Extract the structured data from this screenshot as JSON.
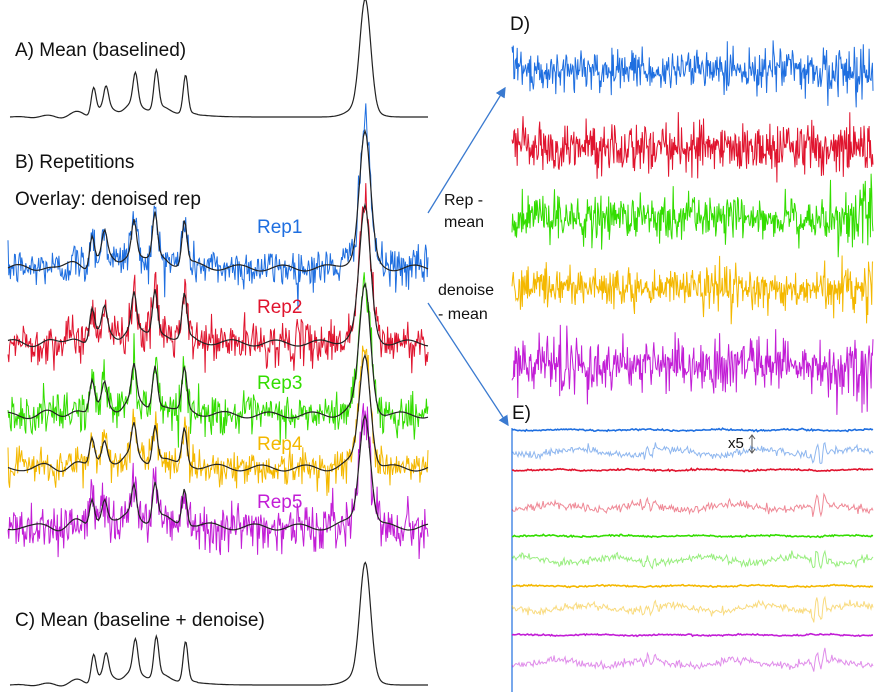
{
  "panels": {
    "a_title": "A) Mean (baselined)",
    "b_title": "B) Repetitions",
    "b_subtitle": "Overlay: denoised rep",
    "c_title": "C) Mean (baseline + denoise)",
    "d_title": "D)",
    "e_title": "E)"
  },
  "arrows": {
    "rep_minus_mean_line1": "Rep -",
    "rep_minus_mean_line2": "mean",
    "denoise_minus_mean_line1": "denoise",
    "denoise_minus_mean_line2": "- mean"
  },
  "scale_note": "x5",
  "colors": {
    "mean": "#222222",
    "rep1": "#1f6fe0",
    "rep2": "#e0142e",
    "rep3": "#33dd00",
    "rep4": "#f4b800",
    "rep5": "#c21ed6",
    "arrow": "#3a7ad0"
  },
  "chart_data": [
    {
      "id": "A",
      "type": "line",
      "title": "A) Mean (baselined)",
      "description_series": "mean spectrum",
      "peaks": [
        {
          "x": 0.2,
          "height": 0.25
        },
        {
          "x": 0.23,
          "height": 0.18
        },
        {
          "x": 0.3,
          "height": 0.28
        },
        {
          "x": 0.35,
          "height": 0.35
        },
        {
          "x": 0.42,
          "height": 0.35
        },
        {
          "x": 0.85,
          "height": 1.0
        }
      ]
    },
    {
      "id": "B",
      "type": "line",
      "title": "B) Repetitions",
      "subtitle": "Overlay: denoised rep",
      "series": [
        {
          "name": "Rep1",
          "color": "#1f6fe0"
        },
        {
          "name": "Rep2",
          "color": "#e0142e"
        },
        {
          "name": "Rep3",
          "color": "#33dd00"
        },
        {
          "name": "Rep4",
          "color": "#f4b800"
        },
        {
          "name": "Rep5",
          "color": "#c21ed6"
        }
      ]
    },
    {
      "id": "C",
      "type": "line",
      "title": "C) Mean (baseline + denoise)"
    },
    {
      "id": "D",
      "type": "line",
      "title": "D)",
      "note": "Rep - mean residuals",
      "series": [
        {
          "name": "Rep1 - mean",
          "color": "#1f6fe0"
        },
        {
          "name": "Rep2 - mean",
          "color": "#e0142e"
        },
        {
          "name": "Rep3 - mean",
          "color": "#33dd00"
        },
        {
          "name": "Rep4 - mean",
          "color": "#f4b800"
        },
        {
          "name": "Rep5 - mean",
          "color": "#c21ed6"
        }
      ]
    },
    {
      "id": "E",
      "type": "line",
      "title": "E)",
      "note": "denoise - mean residuals, raw and x5 magnified",
      "magnification": 5,
      "series": [
        {
          "name": "Rep1",
          "color": "#1f6fe0"
        },
        {
          "name": "Rep2",
          "color": "#e0142e"
        },
        {
          "name": "Rep3",
          "color": "#33dd00"
        },
        {
          "name": "Rep4",
          "color": "#f4b800"
        },
        {
          "name": "Rep5",
          "color": "#c21ed6"
        }
      ]
    }
  ]
}
